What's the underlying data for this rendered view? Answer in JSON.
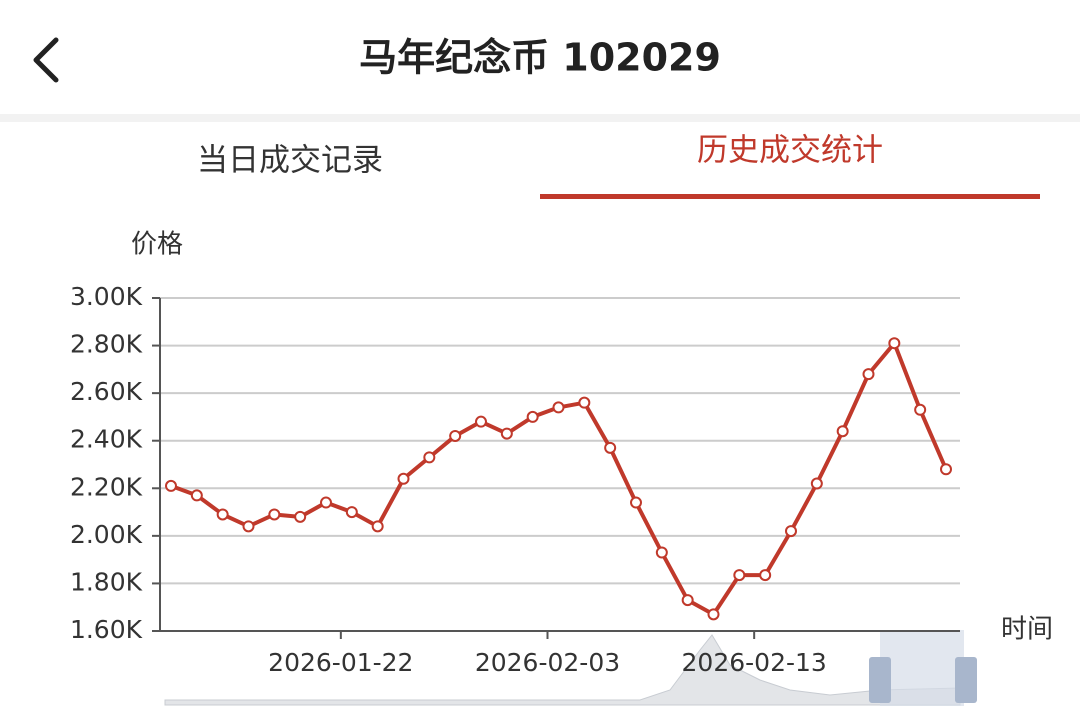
{
  "header": {
    "title": "马年纪念币 102029"
  },
  "tabs": [
    "当日成交记录",
    "历史成交统计"
  ],
  "chart_data": {
    "type": "line",
    "y_axis_name": "价格",
    "x_axis_name": "时间",
    "categories": [
      null,
      null,
      null,
      null,
      null,
      null,
      null,
      "2026-01-22",
      null,
      null,
      null,
      null,
      null,
      null,
      null,
      "2026-02-03",
      null,
      null,
      null,
      null,
      null,
      null,
      null,
      "2026-02-13",
      null,
      null,
      null,
      null,
      null,
      null,
      null
    ],
    "values": [
      2210,
      2170,
      2090,
      2040,
      2090,
      2080,
      2140,
      2100,
      2040,
      2240,
      2330,
      2420,
      2480,
      2430,
      2500,
      2540,
      2560,
      2370,
      2140,
      1930,
      1730,
      1670,
      1835,
      1835,
      2020,
      2220,
      2440,
      2680,
      2810,
      2530,
      2280
    ],
    "color": "#c0392b",
    "ylim": [
      1600,
      3000
    ],
    "yticks": [
      {
        "value": 1600,
        "label": "1.60K"
      },
      {
        "value": 1800,
        "label": "1.80K"
      },
      {
        "value": 2000,
        "label": "2.00K"
      },
      {
        "value": 2200,
        "label": "2.20K"
      },
      {
        "value": 2400,
        "label": "2.40K"
      },
      {
        "value": 2600,
        "label": "2.60K"
      },
      {
        "value": 2800,
        "label": "2.80K"
      },
      {
        "value": 3000,
        "label": "3.00K"
      }
    ],
    "grid": true
  }
}
